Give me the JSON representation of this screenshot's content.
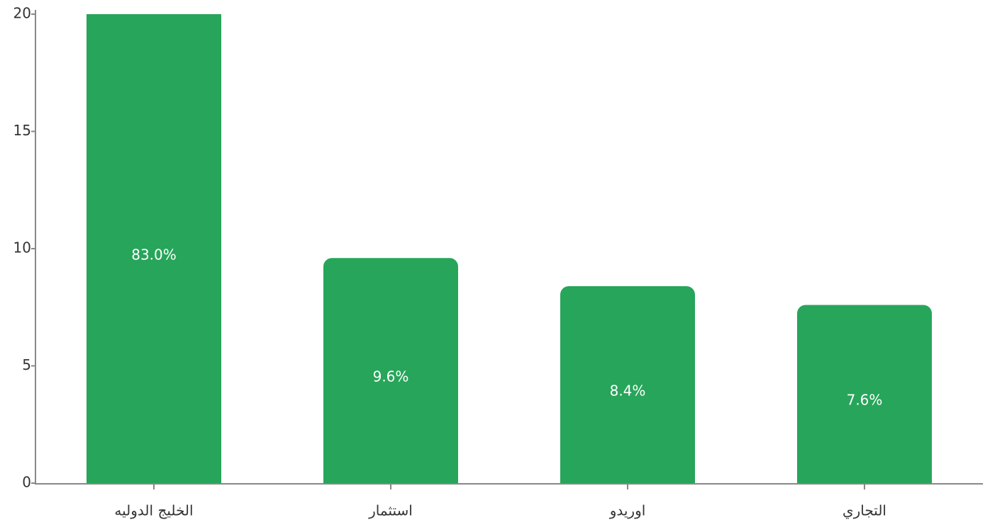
{
  "chart_data": {
    "type": "bar",
    "categories": [
      "الخليج الدوليه",
      "استثمار",
      "اوريدو",
      "التجاري"
    ],
    "values": [
      83.0,
      9.6,
      8.4,
      7.6
    ],
    "value_labels": [
      "83.0%",
      "9.6%",
      "8.4%",
      "7.6%"
    ],
    "color": "#27a55a",
    "ylim": [
      0,
      20
    ],
    "yticks": [
      0,
      5,
      10,
      15,
      20
    ],
    "grid": false
  }
}
